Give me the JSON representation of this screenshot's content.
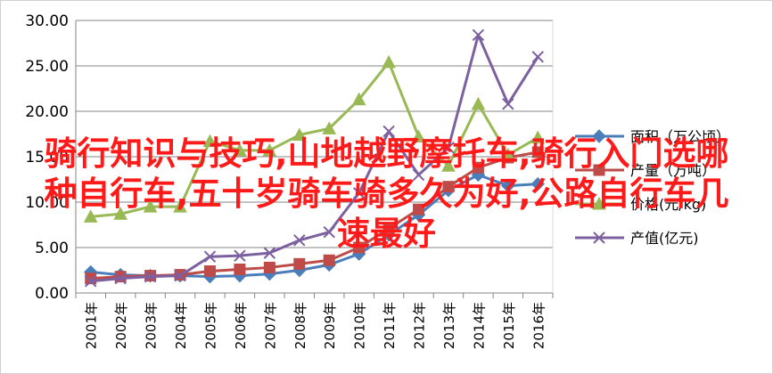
{
  "overlay": {
    "line1": "骑行知识与技巧,山地越野摩托车,骑行入门选哪",
    "line2": "种自行车,五十岁骑车骑多久为好,公路自行车几",
    "line3": "速最好"
  },
  "chart_data": {
    "type": "line",
    "categories": [
      "2001年",
      "2002年",
      "2003年",
      "2004年",
      "2005年",
      "2006年",
      "2007年",
      "2008年",
      "2009年",
      "2010年",
      "2011年",
      "2012年",
      "2013年",
      "2014年",
      "2015年",
      "2016年"
    ],
    "ylim": [
      0,
      30
    ],
    "yticks": [
      "0.00",
      "5.00",
      "10.00",
      "15.00",
      "20.00",
      "25.00",
      "30.00"
    ],
    "ytick_values": [
      0,
      5,
      10,
      15,
      20,
      25,
      30
    ],
    "grid": true,
    "legend_position": "right",
    "series": [
      {
        "name": "面积（万公顷）",
        "color": "#4a7ebb",
        "marker": "diamond",
        "values": [
          2.3,
          2.0,
          1.9,
          1.9,
          1.8,
          1.9,
          2.1,
          2.5,
          3.1,
          4.3,
          6.4,
          8.6,
          11.3,
          13.0,
          11.8,
          12.0
        ]
      },
      {
        "name": "产量（万吨）",
        "color": "#be4b48",
        "marker": "square",
        "values": [
          1.6,
          1.8,
          1.9,
          2.0,
          2.4,
          2.6,
          2.8,
          3.2,
          3.6,
          5.0,
          7.1,
          9.2,
          11.7,
          13.8,
          14.9,
          15.5
        ]
      },
      {
        "name": "价格(元/kg)",
        "color": "#98b954",
        "marker": "triangle",
        "values": [
          8.4,
          8.7,
          9.5,
          9.5,
          16.7,
          15.7,
          15.7,
          17.4,
          18.1,
          21.3,
          25.4,
          17.2,
          14.0,
          20.8,
          15.2,
          17.1
        ]
      },
      {
        "name": "产值(亿元)",
        "color": "#7d60a0",
        "marker": "x",
        "values": [
          1.3,
          1.6,
          1.8,
          1.9,
          4.0,
          4.1,
          4.4,
          5.8,
          6.7,
          11.0,
          17.8,
          13.0,
          16.0,
          28.4,
          20.8,
          26.0
        ]
      }
    ]
  }
}
